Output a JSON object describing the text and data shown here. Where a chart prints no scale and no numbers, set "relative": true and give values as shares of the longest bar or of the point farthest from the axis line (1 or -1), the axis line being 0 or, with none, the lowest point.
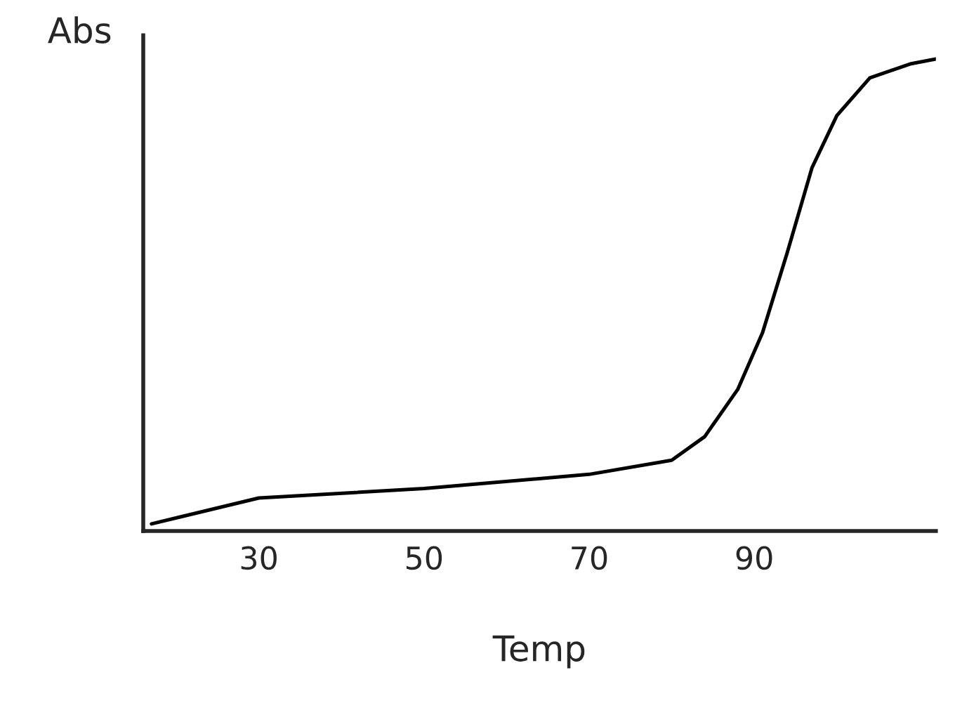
{
  "chart_data": {
    "type": "line",
    "xlabel": "Temp",
    "ylabel": "Abs",
    "relative": true,
    "x": [
      17,
      30,
      50,
      70,
      80,
      84,
      88,
      91,
      94,
      97,
      100,
      104,
      109,
      112
    ],
    "series": [
      {
        "color": "#000000",
        "values": [
          0.015,
          0.07,
          0.09,
          0.12,
          0.15,
          0.2,
          0.3,
          0.42,
          0.59,
          0.77,
          0.88,
          0.96,
          0.99,
          1.0
        ]
      }
    ],
    "xlim": [
      16,
      112
    ],
    "xticks": [
      30,
      50,
      70,
      90
    ],
    "marker": "none",
    "line_style": "solid"
  }
}
